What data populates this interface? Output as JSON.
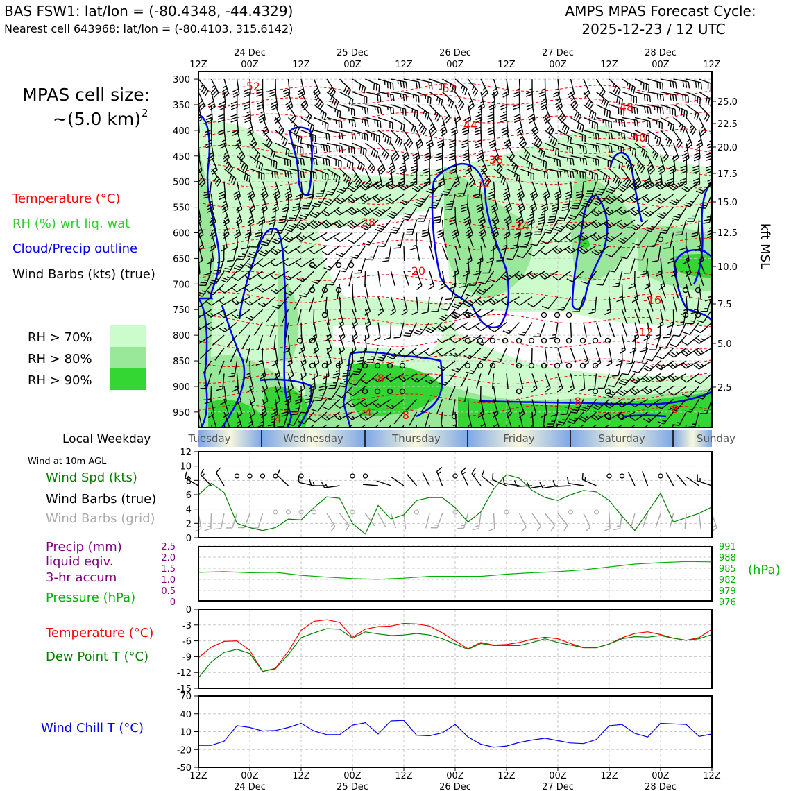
{
  "header": {
    "station": "BAS FSW1: lat/lon = (-80.4348, -44.4329)",
    "nearest": "Nearest cell 643968: lat/lon = (-80.4103, 315.6142)",
    "model": "AMPS MPAS Forecast Cycle:",
    "cycle": "2025-12-23 / 12 UTC"
  },
  "cell_size": {
    "line1": "MPAS cell size:",
    "line2": "~(5.0 km)",
    "sup": "2"
  },
  "legend": {
    "temperature": "Temperature (°C)",
    "rh": "RH (%) wrt liq. wat",
    "cloud": "Cloud/Precip outline",
    "barbs": "Wind Barbs (kts) (true)",
    "rh70": "RH > 70%",
    "rh80": "RH > 80%",
    "rh90": "RH > 90%"
  },
  "colors": {
    "rh70": "#ccfccc",
    "rh80": "#99e899",
    "rh90": "#33d633",
    "temp": "#ff0000",
    "cloud": "#0000ee",
    "wind_spd": "#008000",
    "pressure": "#00b300",
    "precip": "#800080",
    "chill": "#0000ff",
    "grid_barb": "#aaaaaa"
  },
  "time_axis": {
    "top_hours": [
      "12Z",
      "00Z",
      "12Z",
      "00Z",
      "12Z",
      "00Z",
      "12Z",
      "00Z",
      "12Z",
      "00Z",
      "12Z"
    ],
    "dates": [
      "24 Dec",
      "25 Dec",
      "26 Dec",
      "27 Dec",
      "28 Dec"
    ]
  },
  "weekday": {
    "label": "Local Weekday",
    "days": [
      "Tuesday",
      "Wednesday",
      "Thursday",
      "Friday",
      "Saturday",
      "Sunday"
    ]
  },
  "panels": {
    "wind_title": "Wind at 10m AGL",
    "wind_spd": "Wind Spd (kts)",
    "wind_barbs": "Wind Barbs (true)",
    "wind_barbs_grid": "Wind Barbs (grid)",
    "precip1": "Precip (mm)",
    "precip2": "liquid eqiv.",
    "precip3": "3-hr accum",
    "pressure": "Pressure (hPa)",
    "pressure_unit": "(hPa)",
    "temp": "Temperature (°C)",
    "dew": "Dew Point T (°C)",
    "chill": "Wind Chill T (°C)",
    "kft": "kft MSL"
  },
  "chart_data": [
    {
      "type": "heatmap",
      "name": "vertical cross-section",
      "y_axis_left_hpa": [
        300,
        350,
        400,
        450,
        500,
        550,
        600,
        650,
        700,
        750,
        800,
        850,
        900,
        950
      ],
      "y_axis_right_kft": [
        25.0,
        22.5,
        20.0,
        17.5,
        15.0,
        12.5,
        10.0,
        7.5,
        5.0,
        2.5
      ],
      "isotherm_labels": [
        "-52",
        "-52",
        "-48",
        "-44",
        "-40",
        "-36",
        "-32",
        "-28",
        "-24",
        "-20",
        "-16",
        "-12",
        "-8",
        "-8",
        "-4",
        "-4",
        "-8",
        "-8"
      ],
      "series": [
        {
          "name": "Temperature (°C)"
        },
        {
          "name": "RH (%) wrt liq. wat"
        },
        {
          "name": "Cloud/Precip outline"
        }
      ]
    },
    {
      "type": "line",
      "name": "wind speed",
      "yticks": [
        0,
        2,
        4,
        6,
        8,
        10,
        12
      ],
      "ylim": [
        0,
        12
      ],
      "x_hours": [
        0,
        3,
        6,
        9,
        12,
        15,
        18,
        21,
        24,
        27,
        30,
        33,
        36,
        39,
        42,
        45,
        48,
        51,
        54,
        57,
        60,
        63,
        66,
        69,
        72,
        75,
        78,
        81,
        84,
        87,
        90,
        93,
        96,
        99,
        102,
        105,
        108,
        111,
        114,
        117,
        120
      ],
      "values": [
        6.0,
        7.6,
        6.3,
        2.0,
        1.4,
        1.0,
        1.4,
        2.6,
        2.5,
        4.2,
        5.7,
        5.5,
        2.0,
        0.5,
        4.5,
        2.6,
        3.2,
        5.2,
        5.6,
        5.6,
        4.2,
        2.2,
        3.6,
        6.8,
        8.8,
        8.3,
        6.6,
        5.6,
        5.2,
        6.0,
        6.6,
        6.4,
        5.2,
        3.0,
        1.0,
        3.6,
        6.2,
        2.2,
        2.8,
        3.4,
        4.3
      ]
    },
    {
      "type": "line",
      "name": "pressure and precip",
      "yticks_left_precip": [
        "2.5",
        "2.0",
        "1.5",
        "1.0",
        "0.5",
        "0"
      ],
      "yticks_right_hpa": [
        "991",
        "988",
        "985",
        "982",
        "979",
        "976"
      ],
      "series": [
        {
          "name": "Pressure (hPa)",
          "x_hours": [
            0,
            6,
            12,
            18,
            24,
            30,
            36,
            42,
            48,
            54,
            60,
            66,
            72,
            78,
            84,
            90,
            96,
            102,
            108,
            114,
            120
          ],
          "values": [
            983.9,
            984.1,
            983.8,
            983.9,
            983.1,
            982.6,
            982.2,
            982.0,
            982.3,
            982.8,
            982.8,
            982.8,
            983.4,
            983.8,
            984.1,
            984.6,
            985.4,
            986.2,
            986.6,
            986.9,
            986.8
          ]
        },
        {
          "name": "Precip (mm)",
          "values": []
        }
      ]
    },
    {
      "type": "line",
      "name": "temperature",
      "yticks": [
        0,
        -3,
        -6,
        -9,
        -12,
        -15
      ],
      "ylim": [
        -15,
        0
      ],
      "x_hours": [
        0,
        3,
        6,
        9,
        12,
        15,
        18,
        21,
        24,
        27,
        30,
        33,
        36,
        39,
        42,
        45,
        48,
        51,
        54,
        57,
        60,
        63,
        66,
        69,
        72,
        75,
        78,
        81,
        84,
        87,
        90,
        93,
        96,
        99,
        102,
        105,
        108,
        111,
        114,
        117,
        120
      ],
      "series": [
        {
          "name": "Temperature (°C)",
          "values": [
            -9.2,
            -7.2,
            -6.1,
            -6.0,
            -7.8,
            -11.8,
            -11.2,
            -8.0,
            -4.0,
            -2.3,
            -2.0,
            -2.5,
            -5.3,
            -3.8,
            -3.3,
            -3.2,
            -2.7,
            -2.8,
            -3.2,
            -4.5,
            -6.0,
            -7.5,
            -6.3,
            -6.8,
            -6.7,
            -6.3,
            -5.7,
            -5.3,
            -5.6,
            -6.5,
            -7.3,
            -7.3,
            -6.6,
            -5.4,
            -4.6,
            -4.3,
            -4.8,
            -5.5,
            -5.9,
            -5.4,
            -3.8
          ]
        },
        {
          "name": "Dew Point T (°C)",
          "values": [
            -13.0,
            -10.0,
            -8.2,
            -7.6,
            -8.4,
            -11.8,
            -11.3,
            -8.6,
            -5.4,
            -4.5,
            -3.7,
            -3.8,
            -5.5,
            -4.3,
            -4.7,
            -5.0,
            -4.9,
            -4.6,
            -4.9,
            -5.6,
            -6.6,
            -7.6,
            -6.5,
            -6.9,
            -6.9,
            -6.9,
            -6.3,
            -5.6,
            -6.3,
            -6.8,
            -7.3,
            -7.3,
            -6.6,
            -5.6,
            -5.2,
            -5.3,
            -5.0,
            -5.5,
            -5.9,
            -5.6,
            -4.8
          ]
        }
      ]
    },
    {
      "type": "line",
      "name": "wind chill",
      "yticks": [
        70,
        40,
        10,
        -20,
        -50
      ],
      "ylim": [
        -50,
        70
      ],
      "x_hours": [
        0,
        3,
        6,
        9,
        12,
        15,
        18,
        21,
        24,
        27,
        30,
        33,
        36,
        39,
        42,
        45,
        48,
        51,
        54,
        57,
        60,
        63,
        66,
        69,
        72,
        75,
        78,
        81,
        84,
        87,
        90,
        93,
        96,
        99,
        102,
        105,
        108,
        111,
        114,
        117,
        120
      ],
      "values": [
        -13,
        -13,
        -6,
        20,
        17,
        11,
        12,
        17,
        24,
        11,
        5,
        5,
        21,
        25,
        6,
        28,
        29,
        4,
        3,
        8,
        22,
        1,
        -11,
        -16,
        -14,
        -8,
        -4,
        -1,
        -5,
        -9,
        -10,
        -3,
        20,
        22,
        7,
        1,
        24,
        23,
        22,
        2,
        6
      ]
    }
  ]
}
